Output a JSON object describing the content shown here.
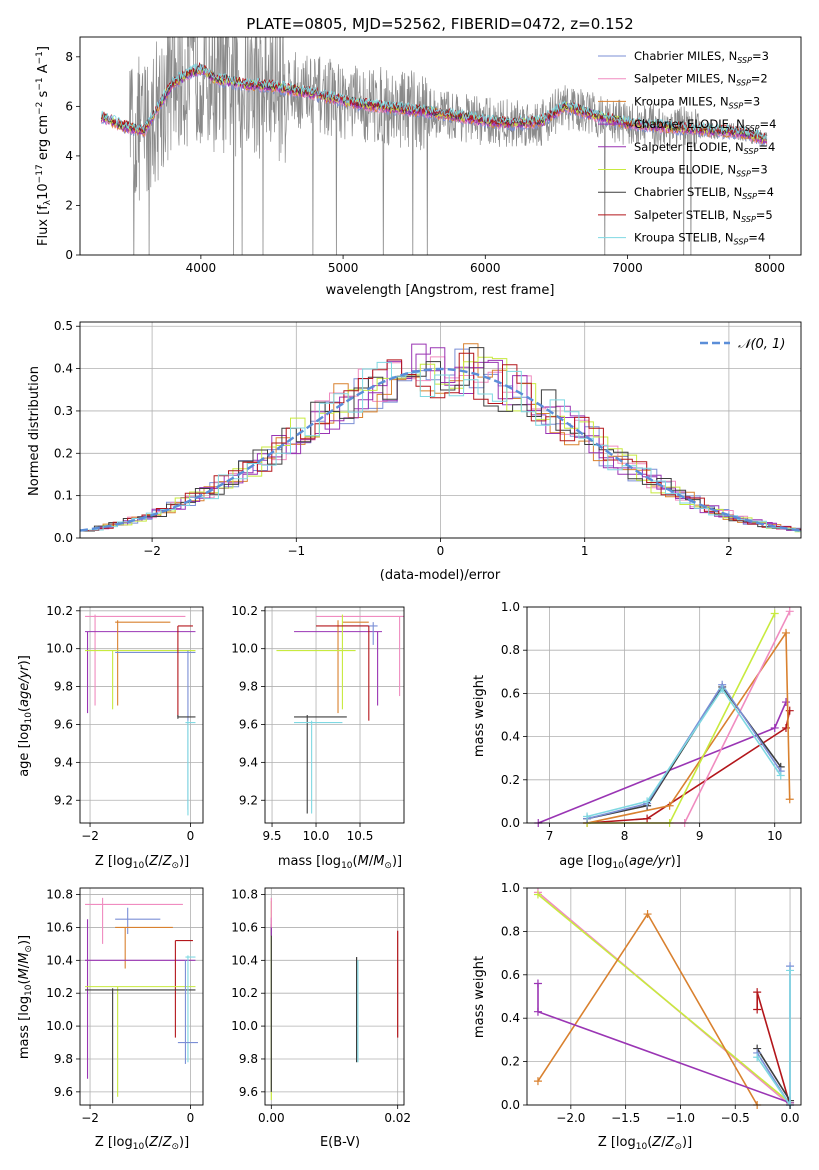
{
  "figure_title": "PLATE=0805, MJD=52562, FIBERID=0472, z=0.152",
  "chart_data": [
    {
      "id": "spectrum",
      "type": "line",
      "title": "PLATE=0805, MJD=52562, FIBERID=0472, z=0.152",
      "xlabel": "wavelength [Angstrom, rest frame]",
      "ylabel": "Flux [f_λ 10^-17 erg cm^-2 s^-1 A^-1]",
      "xlim": [
        3150,
        8220
      ],
      "ylim": [
        0,
        8.8
      ],
      "xticks": [
        4000,
        5000,
        6000,
        7000,
        8000
      ],
      "yticks": [
        0,
        2,
        4,
        6,
        8
      ],
      "legend_position": "upper right",
      "series": [
        {
          "name": "Chabrier MILES, N_SSP=3",
          "color": "#7b8fd6"
        },
        {
          "name": "Salpeter MILES, N_SSP=2",
          "color": "#f08cc0"
        },
        {
          "name": "Kroupa MILES, N_SSP=3",
          "color": "#d9812f"
        },
        {
          "name": "Chabrier ELODIE, N_SSP=4",
          "color": "#9a35b4"
        },
        {
          "name": "Salpeter ELODIE, N_SSP=4",
          "color": "#9a35b4"
        },
        {
          "name": "Kroupa ELODIE, N_SSP=3",
          "color": "#c8ea3f"
        },
        {
          "name": "Chabrier STELIB, N_SSP=4",
          "color": "#3d3d3d"
        },
        {
          "name": "Salpeter STELIB, N_SSP=5",
          "color": "#b3161b"
        },
        {
          "name": "Kroupa STELIB, N_SSP=4",
          "color": "#7fd8e2"
        }
      ],
      "model_curve": {
        "x": [
          3300,
          3450,
          3600,
          3700,
          3800,
          3900,
          4000,
          4100,
          4300,
          4500,
          4800,
          5100,
          5400,
          5700,
          6000,
          6200,
          6400,
          6560,
          6800,
          7000,
          7200,
          7500,
          7800,
          7950
        ],
        "y": [
          5.6,
          5.2,
          5.0,
          6.0,
          6.9,
          7.3,
          7.5,
          7.1,
          6.9,
          6.8,
          6.5,
          6.1,
          5.9,
          5.7,
          5.4,
          5.3,
          5.4,
          6.0,
          5.6,
          5.3,
          5.2,
          5.05,
          4.95,
          4.7
        ]
      },
      "data_noise": "grey observed spectrum"
    },
    {
      "id": "residuals",
      "type": "bar",
      "xlabel": "(data-model)/error",
      "ylabel": "Normed distribution",
      "xlim": [
        -2.5,
        2.5
      ],
      "ylim": [
        0,
        0.51
      ],
      "xticks": [
        -2,
        -1,
        0,
        1,
        2
      ],
      "yticks": [
        0.0,
        0.1,
        0.2,
        0.3,
        0.4,
        0.5
      ],
      "legend": "𝒩(0, 1)",
      "grid": true
    },
    {
      "id": "age-vs-Z",
      "type": "scatter",
      "xlabel": "Z [log10(Z/Z⊙)]",
      "ylabel": "age  [log10(age/yr)]",
      "xlim": [
        -2.2,
        0.25
      ],
      "ylim": [
        9.08,
        10.22
      ],
      "xticks": [
        -2,
        0
      ],
      "yticks": [
        9.2,
        9.4,
        9.6,
        9.8,
        10.0,
        10.2
      ],
      "grid": true
    },
    {
      "id": "age-vs-mass",
      "type": "scatter",
      "xlabel": "mass [log10(M/M⊙)]",
      "xlim": [
        9.42,
        11.0
      ],
      "ylim": [
        9.08,
        10.22
      ],
      "xticks": [
        9.5,
        10.0,
        10.5
      ],
      "yticks": [
        9.2,
        9.4,
        9.6,
        9.8,
        10.0,
        10.2
      ],
      "grid": true
    },
    {
      "id": "massweight-vs-age",
      "type": "line",
      "xlabel": "age  [log10(age/yr)]",
      "ylabel": "mass weight",
      "xlim": [
        6.7,
        10.35
      ],
      "ylim": [
        0,
        1.0
      ],
      "xticks": [
        7,
        8,
        9,
        10
      ],
      "yticks": [
        0.0,
        0.2,
        0.4,
        0.6,
        0.8,
        1.0
      ],
      "grid": true
    },
    {
      "id": "mass-vs-Z",
      "type": "scatter",
      "xlabel": "Z [log10(Z/Z⊙)]",
      "ylabel": "mass [log10(M/M⊙)]",
      "xlim": [
        -2.2,
        0.25
      ],
      "ylim": [
        9.52,
        10.84
      ],
      "xticks": [
        -2,
        0
      ],
      "yticks": [
        9.6,
        9.8,
        10.0,
        10.2,
        10.4,
        10.6,
        10.8
      ],
      "grid": true
    },
    {
      "id": "mass-vs-ebv",
      "type": "scatter",
      "xlabel": "E(B-V)",
      "xlim": [
        -0.001,
        0.021
      ],
      "ylim": [
        9.52,
        10.84
      ],
      "xticks": [
        0.0,
        0.02
      ],
      "yticks": [
        9.6,
        9.8,
        10.0,
        10.2,
        10.4,
        10.6,
        10.8
      ],
      "grid": true
    },
    {
      "id": "massweight-vs-Z",
      "type": "line",
      "xlabel": "Z [log10(Z/Z⊙)]",
      "ylabel": "mass weight",
      "xlim": [
        -2.4,
        0.1
      ],
      "ylim": [
        0,
        1.0
      ],
      "xticks": [
        -2.0,
        -1.5,
        -1.0,
        -0.5,
        0.0
      ],
      "yticks": [
        0.0,
        0.2,
        0.4,
        0.6,
        0.8,
        1.0
      ],
      "grid": true
    }
  ],
  "text": {
    "spec_xlabel": "wavelength [Angstrom, rest frame]",
    "spec_ylabel": "Flux [f",
    "resid_xlabel": "(data-model)/error",
    "resid_ylabel": "Normed distribution",
    "resid_legend": "𝒩(0, 1)",
    "age_ylabel": "age  [log",
    "mass_ylabel": "mass [log",
    "mw_ylabel": "mass weight",
    "z_xlabel": "Z [log",
    "mass_xlabel": "mass [log",
    "age_xlabel": "age  [log",
    "ebv_xlabel": "E(B-V)"
  }
}
